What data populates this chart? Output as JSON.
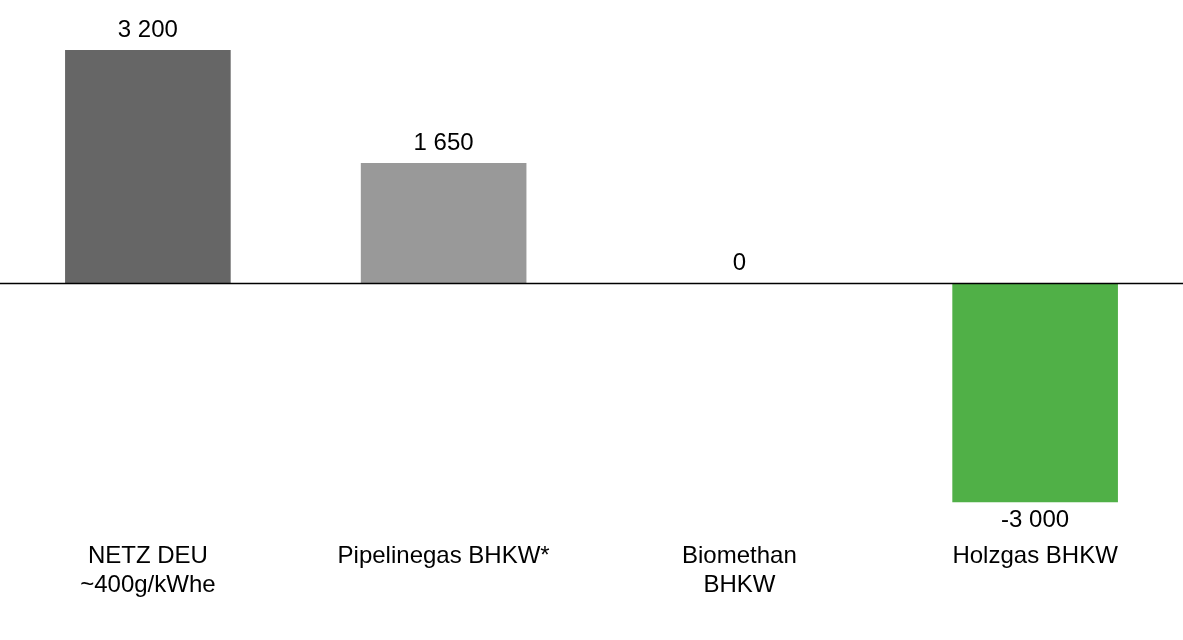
{
  "chart_data": {
    "type": "bar",
    "categories": [
      "NETZ DEU\n~400g/kWhe",
      "Pipelinegas BHKW*",
      "Biomethan\nBHKW",
      "Holzgas BHKW"
    ],
    "values": [
      3200,
      1650,
      0,
      -3000
    ],
    "colors": [
      "#666666",
      "#999999",
      "#999999",
      "#50b047"
    ],
    "value_labels": [
      "3 200",
      "1 650",
      "0",
      "-3 000"
    ]
  }
}
